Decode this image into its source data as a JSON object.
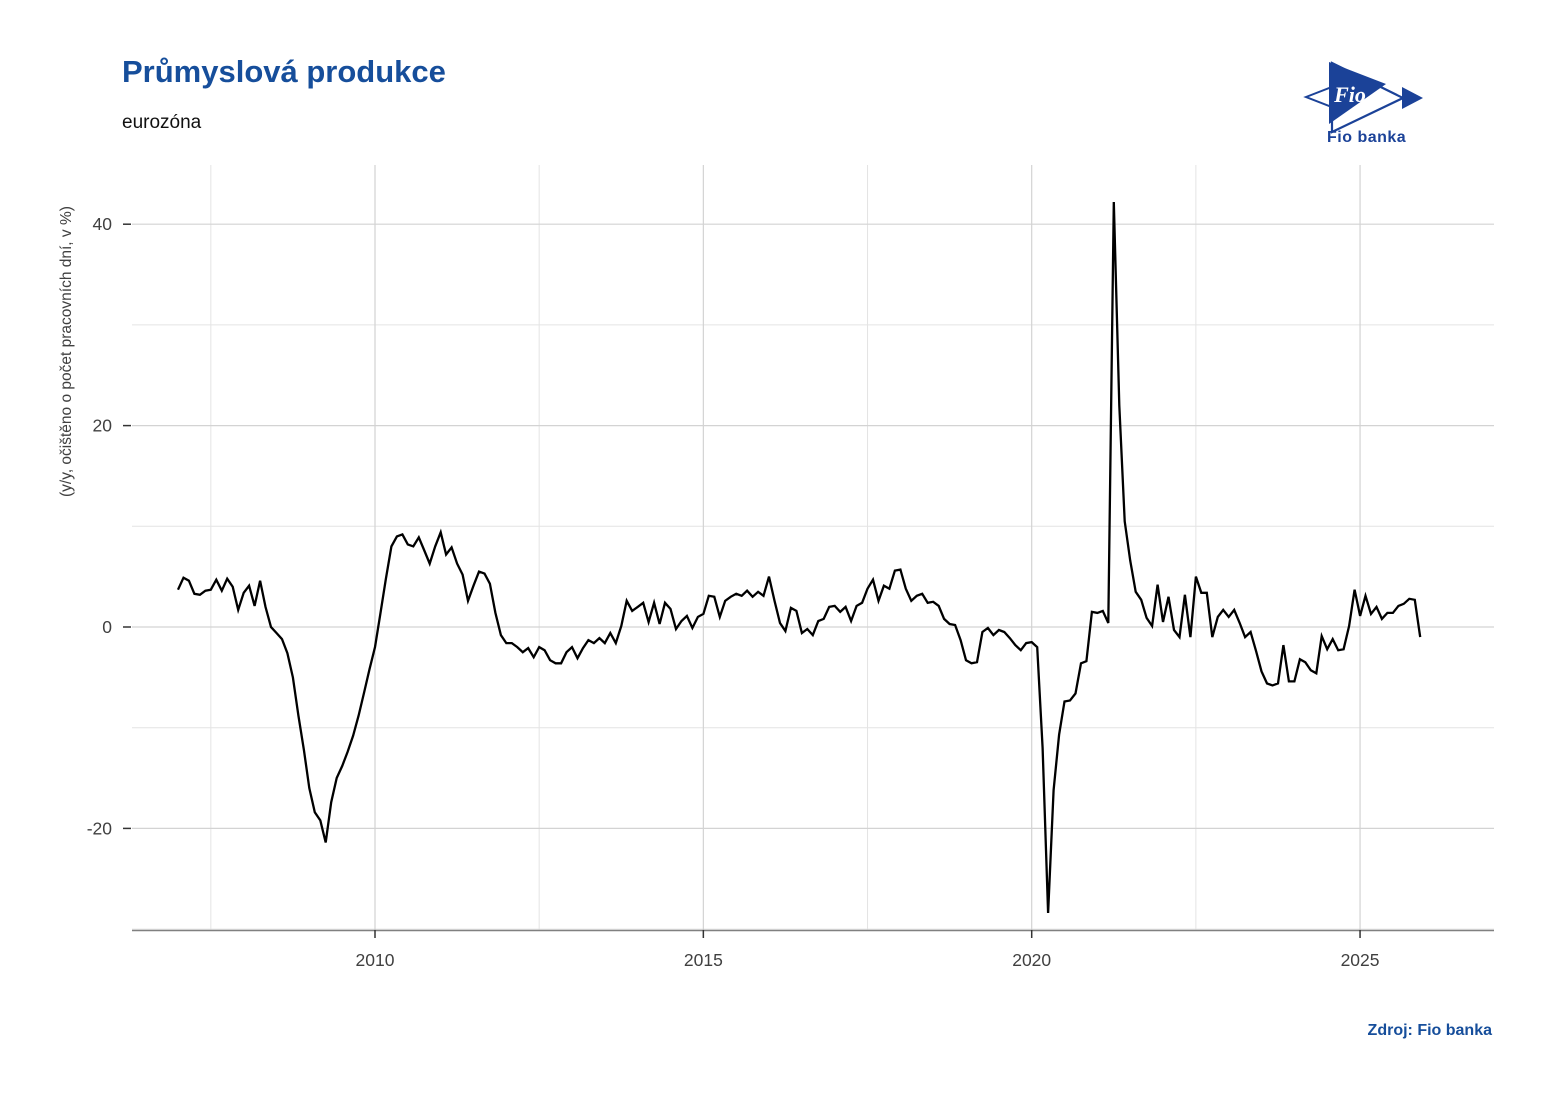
{
  "header": {
    "title": "Průmyslová produkce",
    "subtitle": "eurozóna"
  },
  "logo": {
    "symbol_text": "Fio",
    "wordmark": "Fio banka",
    "color": "#1b4298"
  },
  "footer": {
    "source": "Zdroj: Fio banka"
  },
  "colors": {
    "title_blue": "#164e9b",
    "line": "#000000",
    "grid_major": "#d3d3d3",
    "grid_minor": "#e4e4e4",
    "axis_line": "#808080",
    "tick": "#333333",
    "tick_label": "#404040"
  },
  "chart_data": {
    "type": "line",
    "title": "Průmyslová produkce",
    "subtitle": "eurozóna",
    "xlabel": "",
    "ylabel": "(y/y, očištěno o počet pracovních dní, v %)",
    "grid": true,
    "legend": "none",
    "line_color": "#000000",
    "x_start": {
      "year": 2007,
      "month": 1
    },
    "frequency": "monthly",
    "x_ticks": [
      2010,
      2015,
      2020,
      2025
    ],
    "x_minor_ticks": [
      2007.5,
      2012.5,
      2017.5,
      2022.5
    ],
    "y_ticks": [
      40,
      20,
      0,
      -20
    ],
    "y_minor_ticks": [
      30,
      10,
      -10,
      -30
    ],
    "ylim": [
      -30,
      46
    ],
    "xlim": [
      2006.3,
      2027.1
    ],
    "values": [
      3.7,
      4.9,
      4.6,
      3.3,
      3.2,
      3.6,
      3.7,
      4.7,
      3.6,
      4.8,
      4.0,
      1.7,
      3.4,
      4.1,
      2.1,
      4.6,
      2.0,
      0.0,
      -0.6,
      -1.2,
      -2.6,
      -5.0,
      -8.8,
      -12.2,
      -16.0,
      -18.4,
      -19.2,
      -21.4,
      -17.4,
      -15.0,
      -13.8,
      -12.4,
      -10.8,
      -8.8,
      -6.5,
      -4.2,
      -2.0,
      1.4,
      4.8,
      8.0,
      9.0,
      9.2,
      8.2,
      8.0,
      8.9,
      7.6,
      6.3,
      8.0,
      9.4,
      7.2,
      7.9,
      6.3,
      5.2,
      2.6,
      4.1,
      5.5,
      5.3,
      4.3,
      1.4,
      -0.8,
      -1.6,
      -1.6,
      -2.0,
      -2.5,
      -2.1,
      -3.0,
      -2.0,
      -2.3,
      -3.3,
      -3.6,
      -3.6,
      -2.5,
      -2.0,
      -3.1,
      -2.1,
      -1.3,
      -1.6,
      -1.1,
      -1.6,
      -0.6,
      -1.6,
      0.1,
      2.6,
      1.6,
      2.0,
      2.4,
      0.5,
      2.4,
      0.3,
      2.4,
      1.8,
      -0.2,
      0.6,
      1.1,
      -0.1,
      1.0,
      1.3,
      3.1,
      3.0,
      1.0,
      2.6,
      3.0,
      3.3,
      3.1,
      3.6,
      3.0,
      3.5,
      3.1,
      5.0,
      2.6,
      0.4,
      -0.4,
      1.9,
      1.6,
      -0.6,
      -0.2,
      -0.8,
      0.6,
      0.8,
      2.0,
      2.1,
      1.5,
      2.0,
      0.6,
      2.1,
      2.4,
      3.8,
      4.7,
      2.6,
      4.1,
      3.8,
      5.6,
      5.7,
      3.8,
      2.6,
      3.1,
      3.3,
      2.4,
      2.5,
      2.1,
      0.8,
      0.3,
      0.2,
      -1.3,
      -3.3,
      -3.6,
      -3.5,
      -0.5,
      -0.1,
      -0.8,
      -0.3,
      -0.5,
      -1.1,
      -1.8,
      -2.3,
      -1.6,
      -1.5,
      -2.0,
      -12.0,
      -28.4,
      -16.2,
      -10.7,
      -7.4,
      -7.3,
      -6.6,
      -3.6,
      -3.4,
      1.5,
      1.4,
      1.6,
      0.4,
      42.2,
      22.0,
      10.5,
      6.6,
      3.5,
      2.7,
      0.9,
      0.1,
      4.2,
      0.5,
      3.0,
      -0.3,
      -1.0,
      3.2,
      -1.0,
      5.0,
      3.4,
      3.4,
      -1.0,
      1.0,
      1.7,
      1.0,
      1.7,
      0.4,
      -1.0,
      -0.5,
      -2.4,
      -4.4,
      -5.6,
      -5.8,
      -5.6,
      -1.8,
      -5.4,
      -5.4,
      -3.2,
      -3.5,
      -4.3,
      -4.6,
      -0.9,
      -2.2,
      -1.2,
      -2.3,
      -2.2,
      0.1,
      3.7,
      1.1,
      3.1,
      1.3,
      2.0,
      0.8,
      1.4,
      1.4,
      2.1,
      2.3,
      2.8,
      2.7,
      -1.0
    ]
  }
}
